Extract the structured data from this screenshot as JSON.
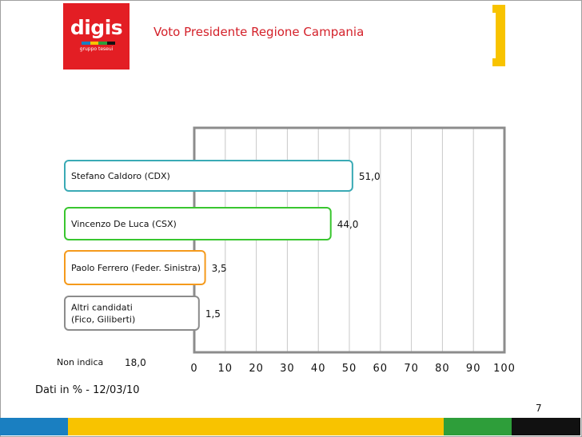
{
  "header": {
    "logo_word": "digis",
    "logo_sub": "gruppo teseui",
    "title": "Voto Presidente Regione Campania"
  },
  "colors": {
    "logo_red": "#e31e24",
    "title_red": "#d4212a",
    "accent_yellow": "#f8c300",
    "blue": "#1a7fc1",
    "green": "#2e9e3a",
    "frame_gray": "#8c8c8c"
  },
  "chart_data": {
    "type": "bar",
    "orientation": "horizontal",
    "categories": [
      "Stefano Caldoro (CDX)",
      "Vincenzo De Luca (CSX)",
      "Paolo Ferrero (Feder. Sinistra)",
      "Altri candidati\n(Fico, Giliberti)"
    ],
    "values": [
      51.0,
      44.0,
      3.5,
      1.5
    ],
    "value_labels": [
      "51,0",
      "44,0",
      "3,5",
      "1,5"
    ],
    "colors": [
      "#3aaab5",
      "#39c62f",
      "#f59a1c",
      "#8c8c8c"
    ],
    "xlim": [
      0,
      100
    ],
    "xticks": [
      "0",
      "10",
      "20",
      "30",
      "40",
      "50",
      "60",
      "70",
      "80",
      "90",
      "100"
    ],
    "grid": true
  },
  "footer": {
    "non_indica_label": "Non indica",
    "non_indica_value": "18,0",
    "source_note": "Dati in % - 12/03/10",
    "page_number": "7"
  }
}
